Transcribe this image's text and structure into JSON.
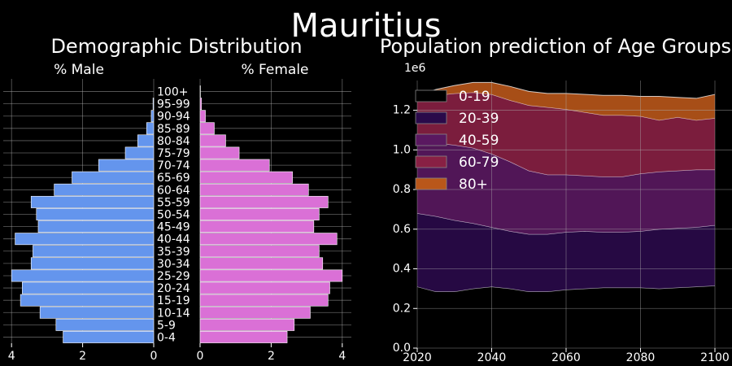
{
  "title": "Mauritius",
  "colors": {
    "background": "#000000",
    "male_bar": "#6495ed",
    "female_bar": "#da70d6",
    "grid": "#b0b0b0"
  },
  "chart_data": [
    {
      "type": "bar",
      "orientation": "horizontal",
      "title": "Demographic Distribution",
      "male_label": "% Male",
      "female_label": "% Female",
      "age_groups": [
        "0-4",
        "5-9",
        "10-14",
        "15-19",
        "20-24",
        "25-29",
        "30-34",
        "35-39",
        "40-44",
        "45-49",
        "50-54",
        "55-59",
        "60-64",
        "65-69",
        "70-74",
        "75-79",
        "80-84",
        "85-89",
        "90-94",
        "95-99",
        "100+"
      ],
      "male": [
        2.55,
        2.75,
        3.2,
        3.75,
        3.7,
        4.0,
        3.45,
        3.4,
        3.9,
        3.25,
        3.3,
        3.45,
        2.8,
        2.3,
        1.55,
        0.8,
        0.45,
        0.2,
        0.07,
        0.02,
        0.0
      ],
      "female": [
        2.45,
        2.65,
        3.1,
        3.6,
        3.65,
        4.0,
        3.45,
        3.35,
        3.85,
        3.2,
        3.35,
        3.6,
        3.05,
        2.6,
        1.95,
        1.1,
        0.72,
        0.4,
        0.15,
        0.04,
        0.01
      ],
      "xlim": [
        0,
        4.2
      ],
      "xticks": [
        4,
        2,
        0
      ]
    },
    {
      "type": "area",
      "stacked": true,
      "title": "Population prediction of Age Groups",
      "y_multiplier_label": "1e6",
      "xlim": [
        2020,
        2100
      ],
      "ylim": [
        0,
        1.35
      ],
      "xticks": [
        2020,
        2040,
        2060,
        2080,
        2100
      ],
      "yticks": [
        "0.0",
        "0.2",
        "0.4",
        "0.6",
        "0.8",
        "1.0",
        "1.2"
      ],
      "legend_position": "top-left",
      "x": [
        2020,
        2025,
        2030,
        2035,
        2040,
        2045,
        2050,
        2055,
        2060,
        2065,
        2070,
        2075,
        2080,
        2085,
        2090,
        2095,
        2100
      ],
      "series": [
        {
          "name": "0-19",
          "color": "#000000",
          "values": [
            0.31,
            0.285,
            0.285,
            0.3,
            0.31,
            0.3,
            0.285,
            0.285,
            0.295,
            0.3,
            0.305,
            0.305,
            0.305,
            0.3,
            0.305,
            0.31,
            0.315
          ]
        },
        {
          "name": "20-39",
          "color": "#2a0a4a",
          "values": [
            0.37,
            0.38,
            0.36,
            0.33,
            0.3,
            0.29,
            0.29,
            0.29,
            0.29,
            0.29,
            0.28,
            0.28,
            0.285,
            0.3,
            0.3,
            0.3,
            0.305
          ]
        },
        {
          "name": "40-59",
          "color": "#5a1860",
          "values": [
            0.35,
            0.37,
            0.38,
            0.38,
            0.37,
            0.35,
            0.32,
            0.3,
            0.29,
            0.28,
            0.28,
            0.28,
            0.29,
            0.29,
            0.29,
            0.29,
            0.28
          ]
        },
        {
          "name": "60-79",
          "color": "#882044",
          "values": [
            0.22,
            0.24,
            0.26,
            0.28,
            0.3,
            0.31,
            0.33,
            0.34,
            0.33,
            0.32,
            0.31,
            0.31,
            0.29,
            0.26,
            0.27,
            0.25,
            0.26
          ]
        },
        {
          "name": "80+",
          "color": "#b9571a",
          "values": [
            0.02,
            0.03,
            0.04,
            0.05,
            0.06,
            0.07,
            0.07,
            0.07,
            0.08,
            0.09,
            0.1,
            0.1,
            0.1,
            0.12,
            0.1,
            0.11,
            0.12
          ]
        }
      ]
    }
  ]
}
